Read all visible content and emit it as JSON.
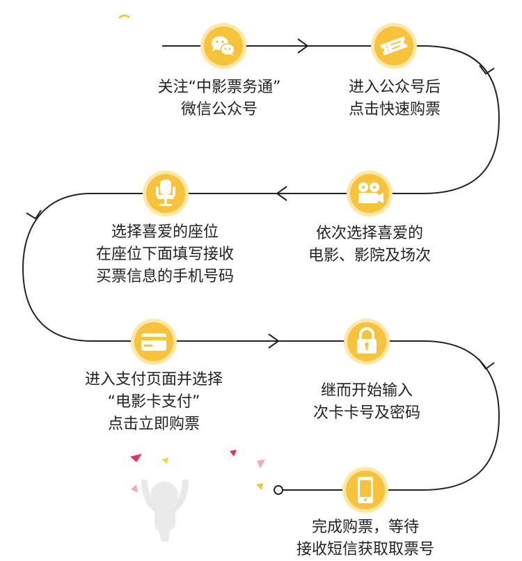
{
  "colors": {
    "accent": "#F8C33C",
    "accent_dark": "#EBA81E",
    "ring": "#FFE7A6",
    "line": "#222222",
    "text": "#222222",
    "person": "#E9E9E9",
    "confetti": [
      "#E8305A",
      "#F2D350",
      "#F4A9B6",
      "#F8C33C"
    ]
  },
  "steps": [
    {
      "icon": "wechat-icon",
      "lines": [
        "关注“中影票务通”",
        "微信公众号"
      ]
    },
    {
      "icon": "ticket-icon",
      "lines": [
        "进入公众号后",
        "点击快速购票"
      ]
    },
    {
      "icon": "film-camera-icon",
      "lines": [
        "依次选择喜爱的",
        "电影、影院及场次"
      ]
    },
    {
      "icon": "seat-icon",
      "lines": [
        "选择喜爱的座位",
        "在座位下面填写接收",
        "买票信息的手机号码"
      ]
    },
    {
      "icon": "card-icon",
      "lines": [
        "进入支付页面并选择",
        "“电影卡支付”",
        "点击立即购票"
      ]
    },
    {
      "icon": "lock-icon",
      "lines": [
        "继而开始输入",
        "次卡卡号及密码"
      ]
    },
    {
      "icon": "phone-icon",
      "lines": [
        "完成购票，等待",
        "接收短信获取取票号"
      ]
    }
  ]
}
